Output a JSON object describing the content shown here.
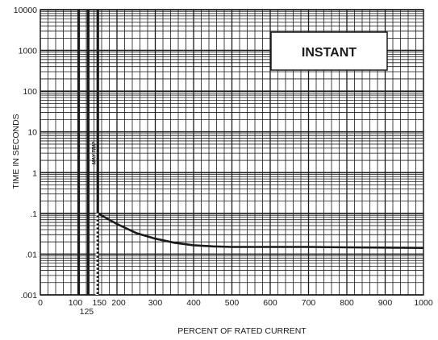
{
  "chart_data": {
    "type": "line",
    "title": "",
    "badge": "INSTANT",
    "xlabel": "PERCENT OF RATED CURRENT",
    "ylabel": "TIME IN SECONDS",
    "y_scale": "log",
    "xlim": [
      0,
      1000
    ],
    "ylim": [
      0.001,
      10000
    ],
    "x_ticks": [
      {
        "value": 0,
        "label": "0"
      },
      {
        "value": 100,
        "label": "100"
      },
      {
        "value": 150,
        "label": "150"
      },
      {
        "value": 200,
        "label": "200"
      },
      {
        "value": 300,
        "label": "300"
      },
      {
        "value": 400,
        "label": "400"
      },
      {
        "value": 500,
        "label": "500"
      },
      {
        "value": 600,
        "label": "600"
      },
      {
        "value": 700,
        "label": "700"
      },
      {
        "value": 800,
        "label": "800"
      },
      {
        "value": 900,
        "label": "900"
      },
      {
        "value": 1000,
        "label": "1000"
      }
    ],
    "x_tick_extra": {
      "value": 125,
      "label": "125"
    },
    "y_ticks": [
      {
        "value": 0.001,
        "label": ".001"
      },
      {
        "value": 0.01,
        "label": ".01"
      },
      {
        "value": 0.1,
        "label": ".1"
      },
      {
        "value": 1,
        "label": "1"
      },
      {
        "value": 10,
        "label": "10"
      },
      {
        "value": 100,
        "label": "100"
      },
      {
        "value": 1000,
        "label": "1000"
      },
      {
        "value": 10000,
        "label": "10000"
      }
    ],
    "grid": true,
    "vertical_markers": [
      100,
      125,
      150
    ],
    "may_trip_label": "MAY TRIP",
    "may_trip_x": 140,
    "series": [
      {
        "values": [
          [
            150,
            0.1
          ],
          [
            200,
            0.055
          ],
          [
            250,
            0.033
          ],
          [
            300,
            0.024
          ],
          [
            350,
            0.019
          ],
          [
            400,
            0.0165
          ],
          [
            450,
            0.0155
          ],
          [
            500,
            0.015
          ],
          [
            600,
            0.015
          ],
          [
            700,
            0.015
          ],
          [
            800,
            0.0147
          ],
          [
            900,
            0.0145
          ],
          [
            1000,
            0.0142
          ]
        ]
      }
    ],
    "dotted_segment": {
      "x": 150,
      "y_from": 0.001,
      "y_to": 0.1
    }
  }
}
